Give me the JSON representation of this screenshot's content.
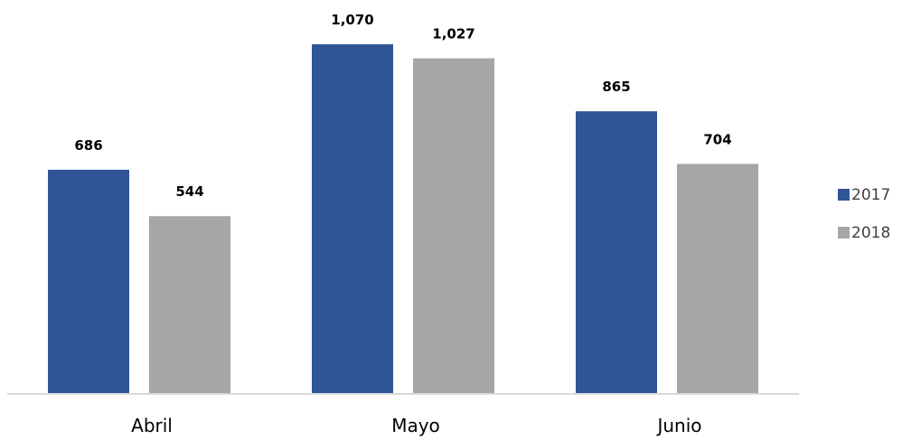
{
  "chart_data": {
    "type": "bar",
    "categories": [
      "Abril",
      "Mayo",
      "Junio"
    ],
    "series": [
      {
        "name": "2017",
        "values": [
          686,
          1070,
          865
        ],
        "labels": [
          "686",
          "1,070",
          "865"
        ],
        "color": "#2f5597"
      },
      {
        "name": "2018",
        "values": [
          544,
          1027,
          704
        ],
        "labels": [
          "544",
          "1,027",
          "704"
        ],
        "color": "#a6a6a6"
      }
    ],
    "title": "",
    "xlabel": "",
    "ylabel": "",
    "ylim": [
      0,
      1070
    ],
    "grid": false,
    "legend_position": "right"
  }
}
